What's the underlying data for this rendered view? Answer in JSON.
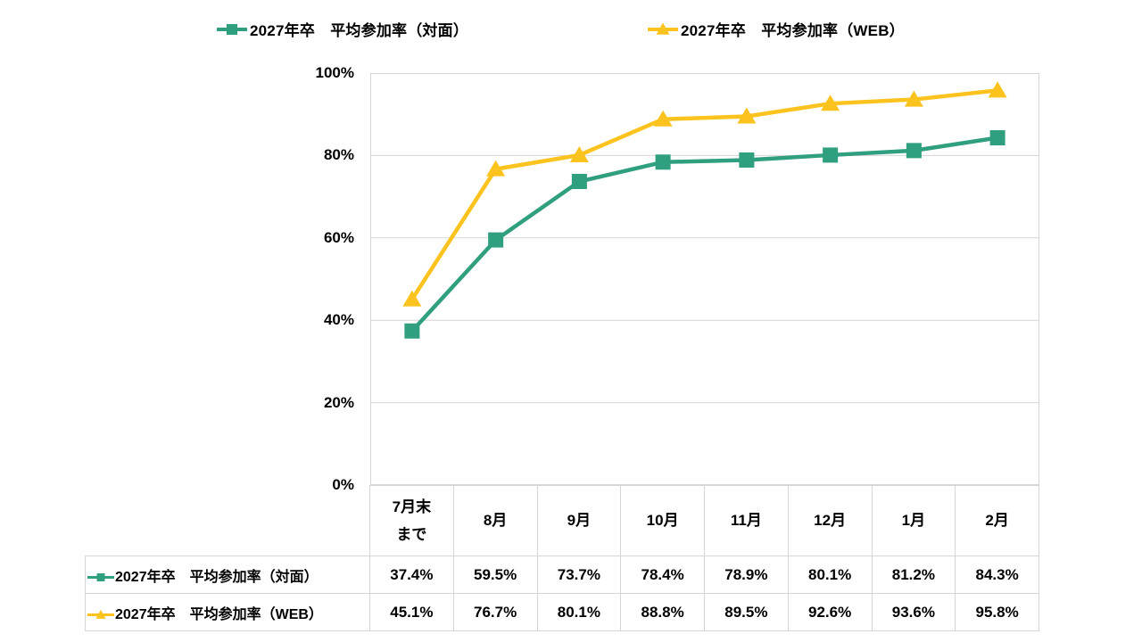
{
  "colors": {
    "taimen": "#2f9f80",
    "web": "#fcc21d",
    "grid": "#d5d5d5",
    "text": "#000000",
    "background": "#ffffff"
  },
  "legend": {
    "items": [
      {
        "label": "2027年卒　平均参加率（対面）",
        "marker": "square",
        "color": "#2f9f80"
      },
      {
        "label": "2027年卒　平均参加率（WEB）",
        "marker": "triangle",
        "color": "#fcc21d"
      }
    ]
  },
  "chart_data": {
    "type": "line",
    "categories": [
      "7月末まで",
      "8月",
      "9月",
      "10月",
      "11月",
      "12月",
      "1月",
      "2月"
    ],
    "series": [
      {
        "name": "2027年卒　平均参加率（対面）",
        "marker": "square",
        "color": "#2f9f80",
        "values": [
          37.4,
          59.5,
          73.7,
          78.4,
          78.9,
          80.1,
          81.2,
          84.3
        ]
      },
      {
        "name": "2027年卒　平均参加率（WEB）",
        "marker": "triangle",
        "color": "#fcc21d",
        "values": [
          45.1,
          76.7,
          80.1,
          88.8,
          89.5,
          92.6,
          93.6,
          95.8
        ]
      }
    ],
    "title": "",
    "xlabel": "",
    "ylabel": "",
    "ylim": [
      0,
      100
    ],
    "yticks": [
      "0%",
      "20%",
      "40%",
      "60%",
      "80%",
      "100%"
    ],
    "grid": true,
    "legend_position": "top",
    "plot_border": true
  },
  "table": {
    "corner_label": "",
    "col_headers": [
      "7月末\nまで",
      "8月",
      "9月",
      "10月",
      "11月",
      "12月",
      "1月",
      "2月"
    ],
    "rows": [
      {
        "label": "2027年卒　平均参加率（対面）",
        "marker": "square",
        "color": "#2f9f80",
        "values": [
          "37.4%",
          "59.5%",
          "73.7%",
          "78.4%",
          "78.9%",
          "80.1%",
          "81.2%",
          "84.3%"
        ]
      },
      {
        "label": "2027年卒　平均参加率（WEB）",
        "marker": "triangle",
        "color": "#fcc21d",
        "values": [
          "45.1%",
          "76.7%",
          "80.1%",
          "88.8%",
          "89.5%",
          "92.6%",
          "93.6%",
          "95.8%"
        ]
      }
    ]
  }
}
